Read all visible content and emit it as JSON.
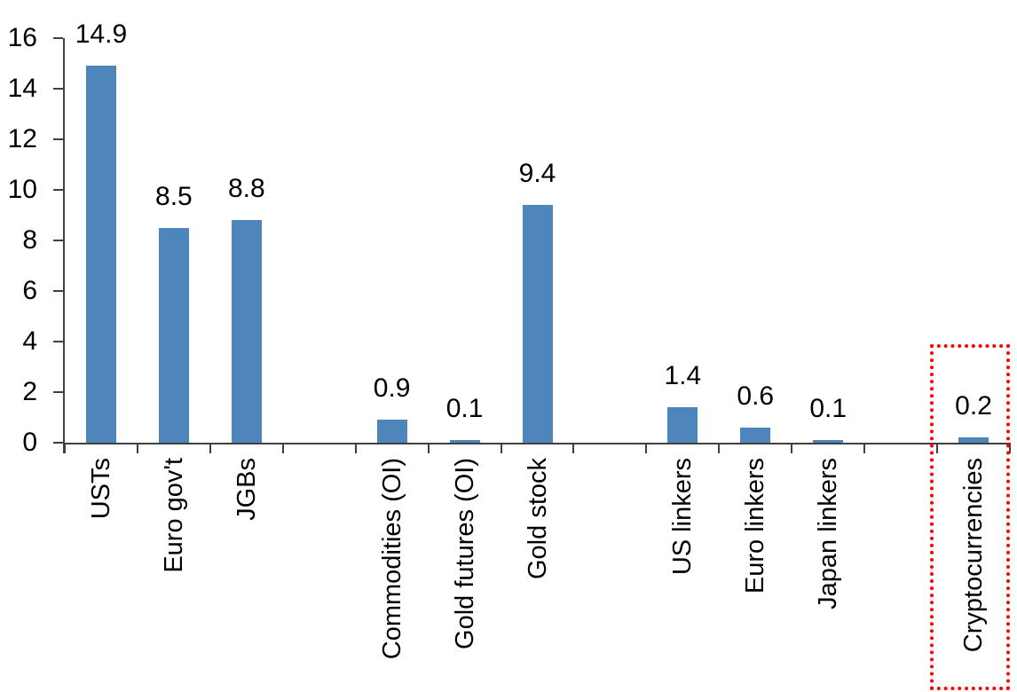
{
  "chart_data": {
    "type": "bar",
    "title": "",
    "xlabel": "",
    "ylabel": "",
    "gridlines": false,
    "legend": null,
    "bar_color": "#4E86BC",
    "axis_color": "#404040",
    "text_color": "#000000",
    "background_color": "#FFFFFF",
    "value_label_decimals": 1,
    "y_axis": {
      "min": 0,
      "max": 16,
      "ticks": [
        0,
        2,
        4,
        6,
        8,
        10,
        12,
        14,
        16
      ]
    },
    "groups": [
      {
        "items": [
          {
            "label": "USTs",
            "value": 14.9
          },
          {
            "label": "Euro gov't",
            "value": 8.5
          },
          {
            "label": "JGBs",
            "value": 8.8
          }
        ]
      },
      {
        "items": [
          {
            "label": "Commodities (OI)",
            "value": 0.9
          },
          {
            "label": "Gold futures (OI)",
            "value": 0.1
          },
          {
            "label": "Gold stock",
            "value": 9.4
          }
        ]
      },
      {
        "items": [
          {
            "label": "US linkers",
            "value": 1.4
          },
          {
            "label": "Euro linkers",
            "value": 0.6
          },
          {
            "label": "Japan linkers",
            "value": 0.1
          }
        ]
      },
      {
        "items": [
          {
            "label": "Cryptocurrencies",
            "value": 0.2
          }
        ]
      }
    ],
    "highlight": {
      "type": "highlight_box",
      "target": "Cryptocurrencies",
      "color": "#FF0000",
      "style": "dotted"
    }
  }
}
